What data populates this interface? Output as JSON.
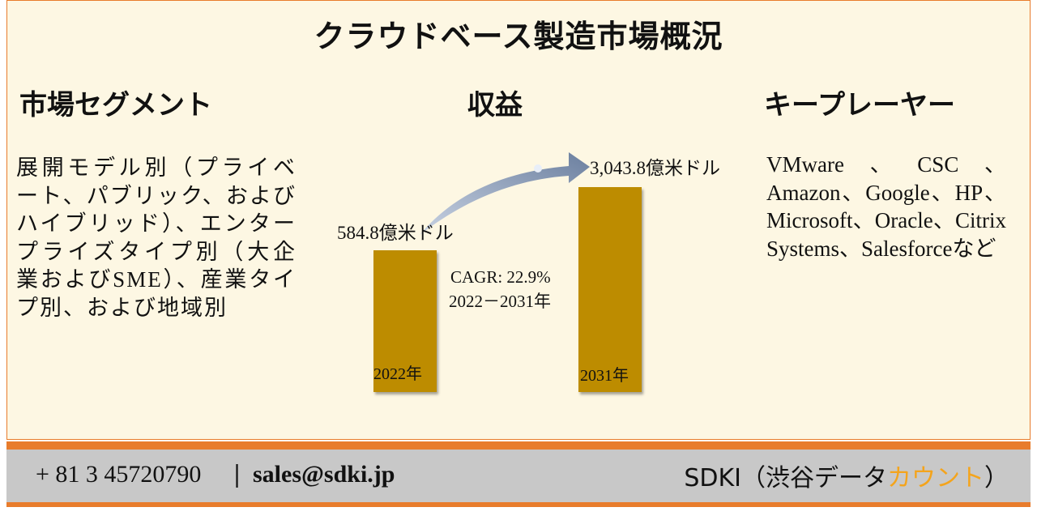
{
  "header": {
    "title": "クラウドベース製造市場概況"
  },
  "segments": {
    "heading": "市場セグメント",
    "text": "展開モデル別（プライベート、パブリック、およびハイブリッド）、エンタープライズタイプ別（大企業およびSME）、産業タイプ別、および地域別"
  },
  "revenue": {
    "heading": "収益",
    "start_value": "584.8億米ドル",
    "end_value": "3,043.8億米ドル",
    "cagr": "CAGR: 22.9%",
    "period": "2022－2031年",
    "start_year": "2022年",
    "end_year": "2031年"
  },
  "players": {
    "heading": "キープレーヤー",
    "text": "VMware、CSC、Amazon、Google、HP、Microsoft、Oracle、Citrix Systems、Salesforceなど"
  },
  "footer": {
    "phone": "+ 81 3 45720790",
    "separator": "|",
    "email": "sales@sdki.jp",
    "brand_prefix": "SDKI（渋谷データ",
    "brand_highlight": "カウント",
    "brand_suffix": "）"
  }
}
